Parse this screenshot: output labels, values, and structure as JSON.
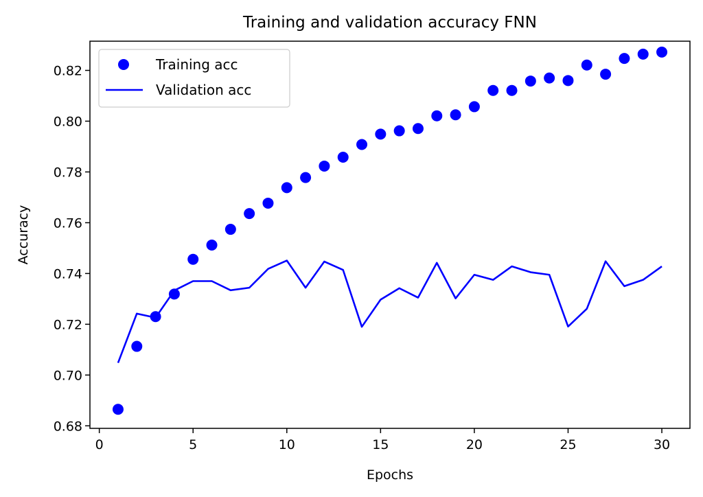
{
  "chart_data": {
    "type": "line",
    "title": "Training and validation accuracy FNN",
    "xlabel": "Epochs",
    "ylabel": "Accuracy",
    "xlim": [
      -0.5,
      31.5
    ],
    "ylim": [
      0.679,
      0.8315
    ],
    "xticks": [
      0,
      5,
      10,
      15,
      20,
      25,
      30
    ],
    "xtick_labels": [
      "0",
      "5",
      "10",
      "15",
      "20",
      "25",
      "30"
    ],
    "yticks": [
      0.68,
      0.7,
      0.72,
      0.74,
      0.76,
      0.78,
      0.8,
      0.82
    ],
    "ytick_labels": [
      "0.68",
      "0.70",
      "0.72",
      "0.74",
      "0.76",
      "0.78",
      "0.80",
      "0.82"
    ],
    "grid": false,
    "legend_position": "top-left",
    "x": [
      1,
      2,
      3,
      4,
      5,
      6,
      7,
      8,
      9,
      10,
      11,
      12,
      13,
      14,
      15,
      16,
      17,
      18,
      19,
      20,
      21,
      22,
      23,
      24,
      25,
      26,
      27,
      28,
      29,
      30
    ],
    "series": [
      {
        "name": "Training acc",
        "style": "markers",
        "color": "#0000ff",
        "values": [
          0.6865,
          0.7113,
          0.723,
          0.7319,
          0.7456,
          0.7512,
          0.7574,
          0.7636,
          0.7677,
          0.7738,
          0.7778,
          0.7823,
          0.7858,
          0.7908,
          0.7949,
          0.7962,
          0.7971,
          0.8021,
          0.8025,
          0.8057,
          0.8121,
          0.8121,
          0.8158,
          0.817,
          0.816,
          0.8221,
          0.8185,
          0.8247,
          0.8264,
          0.8272
        ]
      },
      {
        "name": "Validation acc",
        "style": "line",
        "color": "#0000ff",
        "values": [
          0.7048,
          0.7242,
          0.7226,
          0.7333,
          0.737,
          0.737,
          0.7334,
          0.7344,
          0.7418,
          0.7451,
          0.7344,
          0.7447,
          0.7414,
          0.719,
          0.7297,
          0.7342,
          0.7305,
          0.7442,
          0.7302,
          0.7395,
          0.7375,
          0.7428,
          0.7405,
          0.7395,
          0.7191,
          0.7261,
          0.7448,
          0.735,
          0.7375,
          0.7428
        ]
      }
    ]
  }
}
